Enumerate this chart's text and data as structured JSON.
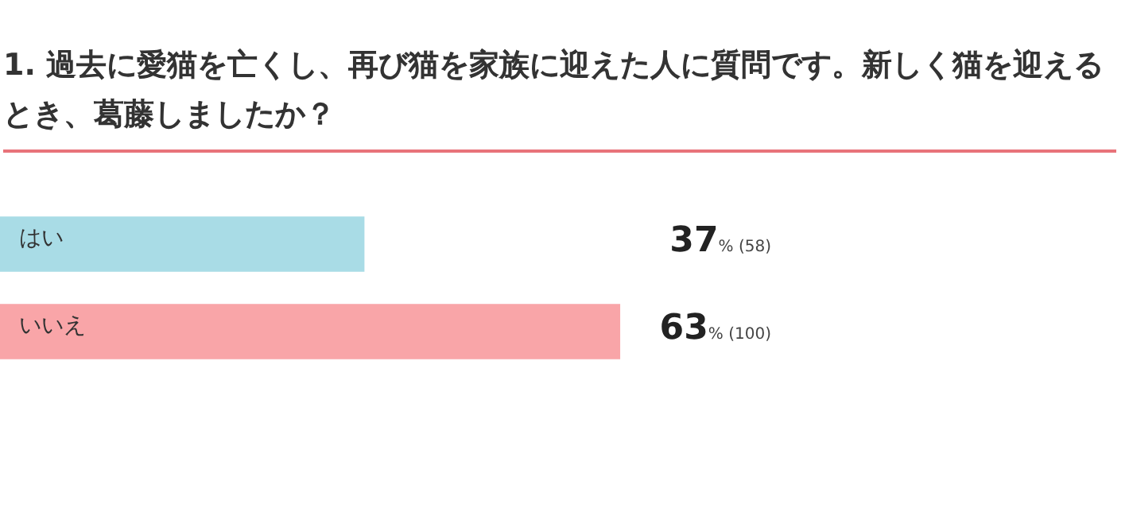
{
  "chart_data": {
    "type": "bar",
    "orientation": "horizontal",
    "title": "1. 過去に愛猫を亡くし、再び猫を家族に迎えた人に質問です。新しく猫を迎えるとき、葛藤しましたか？",
    "categories": [
      "はい",
      "いいえ"
    ],
    "values": [
      37,
      63
    ],
    "colors": [
      "#a9dce6",
      "#f9a5a8"
    ],
    "value_labels": [
      "37% (58)",
      "63% (100)"
    ],
    "tick_labels": false,
    "grid": false,
    "legend": false
  }
}
